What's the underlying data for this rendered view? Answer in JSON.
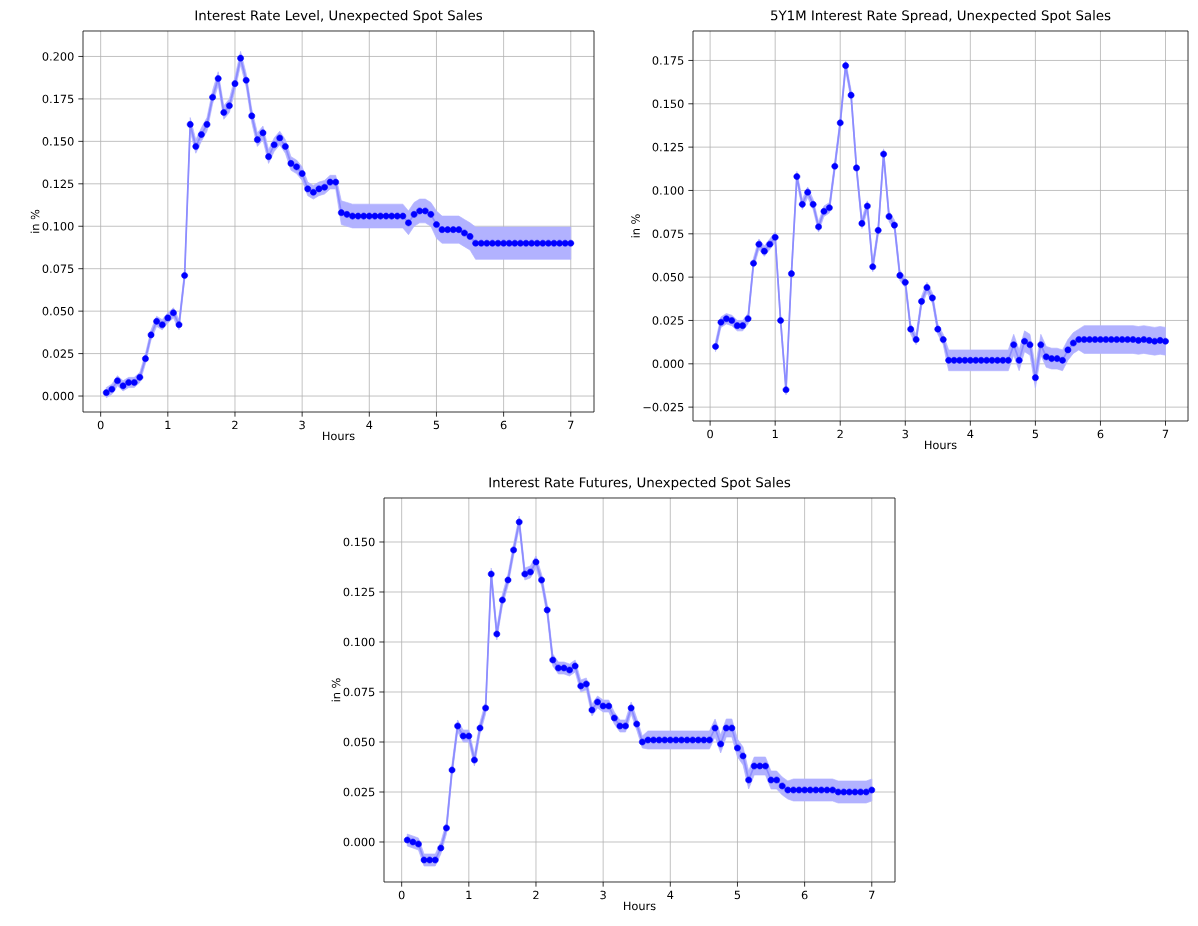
{
  "chart_data": [
    {
      "type": "line",
      "title": "Interest Rate Level, Unexpected Spot Sales",
      "xlabel": "Hours",
      "ylabel": "in %",
      "grid": true,
      "marker": "circle",
      "line_style": "solid",
      "xlim": [
        -0.263,
        7.346
      ],
      "ylim": [
        -0.0094,
        0.215
      ],
      "xticks": [
        0,
        1,
        2,
        3,
        4,
        5,
        6,
        7
      ],
      "yticks": [
        {
          "value": 0,
          "label": "0.000"
        },
        {
          "value": 0.025,
          "label": "0.025"
        },
        {
          "value": 0.05,
          "label": "0.050"
        },
        {
          "value": 0.075,
          "label": "0.075"
        },
        {
          "value": 0.1,
          "label": "0.100"
        },
        {
          "value": 0.125,
          "label": "0.125"
        },
        {
          "value": 0.15,
          "label": "0.150"
        },
        {
          "value": 0.175,
          "label": "0.175"
        },
        {
          "value": 0.2,
          "label": "0.200"
        }
      ],
      "x": [
        0.0833,
        0.1667,
        0.25,
        0.3333,
        0.4167,
        0.5,
        0.5833,
        0.6667,
        0.75,
        0.8333,
        0.9167,
        1,
        1.0833,
        1.1667,
        1.25,
        1.3333,
        1.4167,
        1.5,
        1.5833,
        1.6667,
        1.75,
        1.8333,
        1.9167,
        2,
        2.0833,
        2.1667,
        2.25,
        2.3333,
        2.4167,
        2.5,
        2.5833,
        2.6667,
        2.75,
        2.8333,
        2.9167,
        3,
        3.0833,
        3.1667,
        3.25,
        3.3333,
        3.4167,
        3.5,
        3.5833,
        3.6667,
        3.75,
        3.8333,
        3.9167,
        4,
        4.0833,
        4.1667,
        4.25,
        4.3333,
        4.4167,
        4.5,
        4.5833,
        4.6667,
        4.75,
        4.8333,
        4.9167,
        5,
        5.0833,
        5.1667,
        5.25,
        5.3333,
        5.4167,
        5.5,
        5.5833,
        5.6667,
        5.75,
        5.8333,
        5.9167,
        6,
        6.0833,
        6.1667,
        6.25,
        6.3333,
        6.4167,
        6.5,
        6.5833,
        6.6667,
        6.75,
        6.8333,
        6.9167,
        7
      ],
      "series": [
        {
          "color": "#0000ff",
          "values": [
            0.002,
            0.004,
            0.009,
            0.006,
            0.008,
            0.008,
            0.011,
            0.022,
            0.036,
            0.044,
            0.042,
            0.046,
            0.049,
            0.042,
            0.071,
            0.16,
            0.147,
            0.154,
            0.16,
            0.176,
            0.187,
            0.167,
            0.171,
            0.184,
            0.199,
            0.186,
            0.165,
            0.151,
            0.155,
            0.141,
            0.148,
            0.152,
            0.147,
            0.137,
            0.135,
            0.131,
            0.122,
            0.12,
            0.122,
            0.123,
            0.126,
            0.126,
            0.108,
            0.107,
            0.106,
            0.106,
            0.106,
            0.106,
            0.106,
            0.106,
            0.106,
            0.106,
            0.106,
            0.106,
            0.102,
            0.107,
            0.109,
            0.109,
            0.107,
            0.101,
            0.098,
            0.098,
            0.098,
            0.098,
            0.096,
            0.094,
            0.09,
            0.09,
            0.09,
            0.09,
            0.09,
            0.09,
            0.09,
            0.09,
            0.09,
            0.09,
            0.09,
            0.09,
            0.09,
            0.09,
            0.09,
            0.09,
            0.09,
            0.09
          ],
          "lower": [
            -0.001,
            0.001,
            0.006,
            0.003,
            0.005,
            0.005,
            0.008,
            0.019,
            0.033,
            0.041,
            0.039,
            0.043,
            0.046,
            0.039,
            0.068,
            0.156,
            0.143,
            0.15,
            0.156,
            0.172,
            0.183,
            0.163,
            0.167,
            0.18,
            0.195,
            0.182,
            0.161,
            0.147,
            0.151,
            0.137,
            0.144,
            0.148,
            0.143,
            0.133,
            0.131,
            0.127,
            0.118,
            0.116,
            0.118,
            0.119,
            0.122,
            0.122,
            0.101,
            0.1,
            0.099,
            0.099,
            0.099,
            0.099,
            0.099,
            0.099,
            0.099,
            0.099,
            0.099,
            0.099,
            0.095,
            0.1,
            0.102,
            0.102,
            0.1,
            0.093,
            0.09,
            0.09,
            0.09,
            0.09,
            0.088,
            0.086,
            0.0805,
            0.0805,
            0.0805,
            0.0805,
            0.0805,
            0.0805,
            0.0805,
            0.0805,
            0.0805,
            0.0805,
            0.0805,
            0.0805,
            0.0805,
            0.0805,
            0.0805,
            0.0805,
            0.0805,
            0.0805
          ],
          "upper": [
            0.005,
            0.007,
            0.012,
            0.009,
            0.011,
            0.011,
            0.014,
            0.025,
            0.039,
            0.047,
            0.045,
            0.049,
            0.052,
            0.045,
            0.074,
            0.164,
            0.151,
            0.158,
            0.164,
            0.18,
            0.191,
            0.171,
            0.175,
            0.188,
            0.203,
            0.19,
            0.169,
            0.155,
            0.159,
            0.145,
            0.152,
            0.156,
            0.151,
            0.141,
            0.139,
            0.135,
            0.126,
            0.124,
            0.126,
            0.127,
            0.13,
            0.13,
            0.115,
            0.114,
            0.113,
            0.113,
            0.113,
            0.113,
            0.113,
            0.113,
            0.113,
            0.113,
            0.113,
            0.113,
            0.109,
            0.114,
            0.116,
            0.116,
            0.114,
            0.109,
            0.106,
            0.106,
            0.106,
            0.106,
            0.104,
            0.102,
            0.0995,
            0.0995,
            0.0995,
            0.0995,
            0.0995,
            0.0995,
            0.0995,
            0.0995,
            0.0995,
            0.0995,
            0.0995,
            0.0995,
            0.0995,
            0.0995,
            0.0995,
            0.0995,
            0.0995,
            0.0995
          ]
        }
      ]
    },
    {
      "type": "line",
      "title": "5Y1M Interest Rate Spread, Unexpected Spot Sales",
      "xlabel": "Hours",
      "ylabel": "in %",
      "grid": true,
      "marker": "circle",
      "line_style": "solid",
      "xlim": [
        -0.263,
        7.346
      ],
      "ylim": [
        -0.033,
        0.192
      ],
      "xticks": [
        0,
        1,
        2,
        3,
        4,
        5,
        6,
        7
      ],
      "yticks": [
        {
          "value": -0.025,
          "label": "−0.025"
        },
        {
          "value": 0,
          "label": "0.000"
        },
        {
          "value": 0.025,
          "label": "0.025"
        },
        {
          "value": 0.05,
          "label": "0.050"
        },
        {
          "value": 0.075,
          "label": "0.075"
        },
        {
          "value": 0.1,
          "label": "0.100"
        },
        {
          "value": 0.125,
          "label": "0.125"
        },
        {
          "value": 0.15,
          "label": "0.150"
        },
        {
          "value": 0.175,
          "label": "0.175"
        }
      ],
      "x": [
        0.0833,
        0.1667,
        0.25,
        0.3333,
        0.4167,
        0.5,
        0.5833,
        0.6667,
        0.75,
        0.8333,
        0.9167,
        1,
        1.0833,
        1.1667,
        1.25,
        1.3333,
        1.4167,
        1.5,
        1.5833,
        1.6667,
        1.75,
        1.8333,
        1.9167,
        2,
        2.0833,
        2.1667,
        2.25,
        2.3333,
        2.4167,
        2.5,
        2.5833,
        2.6667,
        2.75,
        2.8333,
        2.9167,
        3,
        3.0833,
        3.1667,
        3.25,
        3.3333,
        3.4167,
        3.5,
        3.5833,
        3.6667,
        3.75,
        3.8333,
        3.9167,
        4,
        4.0833,
        4.1667,
        4.25,
        4.3333,
        4.4167,
        4.5,
        4.5833,
        4.6667,
        4.75,
        4.8333,
        4.9167,
        5,
        5.0833,
        5.1667,
        5.25,
        5.3333,
        5.4167,
        5.5,
        5.5833,
        5.6667,
        5.75,
        5.8333,
        5.9167,
        6,
        6.0833,
        6.1667,
        6.25,
        6.3333,
        6.4167,
        6.5,
        6.5833,
        6.6667,
        6.75,
        6.8333,
        6.9167,
        7
      ],
      "series": [
        {
          "color": "#0000ff",
          "values": [
            0.01,
            0.024,
            0.026,
            0.025,
            0.022,
            0.022,
            0.026,
            0.058,
            0.069,
            0.065,
            0.069,
            0.073,
            0.025,
            -0.015,
            0.052,
            0.108,
            0.092,
            0.099,
            0.092,
            0.079,
            0.088,
            0.09,
            0.114,
            0.139,
            0.172,
            0.155,
            0.113,
            0.081,
            0.091,
            0.056,
            0.077,
            0.121,
            0.085,
            0.08,
            0.051,
            0.047,
            0.02,
            0.014,
            0.036,
            0.044,
            0.038,
            0.02,
            0.014,
            0.002,
            0.002,
            0.002,
            0.002,
            0.002,
            0.002,
            0.002,
            0.002,
            0.002,
            0.002,
            0.002,
            0.002,
            0.011,
            0.002,
            0.013,
            0.011,
            -0.008,
            0.011,
            0.004,
            0.003,
            0.003,
            0.002,
            0.008,
            0.012,
            0.014,
            0.014,
            0.014,
            0.014,
            0.014,
            0.014,
            0.014,
            0.014,
            0.014,
            0.014,
            0.014,
            0.0135,
            0.014,
            0.0135,
            0.013,
            0.0135,
            0.013
          ],
          "lower": [
            0.007,
            0.021,
            0.023,
            0.022,
            0.019,
            0.019,
            0.023,
            0.055,
            0.066,
            0.062,
            0.066,
            0.07,
            0.022,
            -0.018,
            0.049,
            0.105,
            0.089,
            0.096,
            0.089,
            0.076,
            0.085,
            0.087,
            0.111,
            0.136,
            0.169,
            0.152,
            0.11,
            0.078,
            0.088,
            0.053,
            0.074,
            0.118,
            0.082,
            0.077,
            0.048,
            0.044,
            0.017,
            0.011,
            0.033,
            0.041,
            0.035,
            0.017,
            0.011,
            -0.004,
            -0.004,
            -0.004,
            -0.004,
            -0.004,
            -0.004,
            -0.004,
            -0.004,
            -0.004,
            -0.004,
            -0.004,
            -0.004,
            0.005,
            -0.004,
            0.007,
            0.005,
            -0.014,
            0.005,
            -0.002,
            -0.003,
            -0.003,
            -0.004,
            0.002,
            0.006,
            0.008,
            0.006,
            0.006,
            0.006,
            0.006,
            0.006,
            0.006,
            0.006,
            0.006,
            0.006,
            0.006,
            0.0055,
            0.006,
            0.0055,
            0.005,
            0.0055,
            0.005
          ],
          "upper": [
            0.013,
            0.027,
            0.029,
            0.028,
            0.025,
            0.025,
            0.029,
            0.061,
            0.072,
            0.068,
            0.072,
            0.076,
            0.028,
            -0.012,
            0.055,
            0.111,
            0.095,
            0.102,
            0.095,
            0.082,
            0.091,
            0.093,
            0.117,
            0.142,
            0.175,
            0.158,
            0.116,
            0.084,
            0.094,
            0.059,
            0.08,
            0.124,
            0.088,
            0.083,
            0.054,
            0.05,
            0.023,
            0.017,
            0.039,
            0.047,
            0.041,
            0.023,
            0.017,
            0.008,
            0.008,
            0.008,
            0.008,
            0.008,
            0.008,
            0.008,
            0.008,
            0.008,
            0.008,
            0.008,
            0.008,
            0.017,
            0.008,
            0.019,
            0.017,
            -0.002,
            0.017,
            0.01,
            0.009,
            0.009,
            0.008,
            0.014,
            0.018,
            0.02,
            0.022,
            0.022,
            0.022,
            0.022,
            0.022,
            0.022,
            0.022,
            0.022,
            0.022,
            0.022,
            0.0215,
            0.022,
            0.0215,
            0.021,
            0.0215,
            0.021
          ]
        }
      ]
    },
    {
      "type": "line",
      "title": "Interest Rate Futures, Unexpected Spot Sales",
      "xlabel": "Hours",
      "ylabel": "in %",
      "grid": true,
      "marker": "circle",
      "line_style": "solid",
      "xlim": [
        -0.263,
        7.346
      ],
      "ylim": [
        -0.02,
        0.172
      ],
      "xticks": [
        0,
        1,
        2,
        3,
        4,
        5,
        6,
        7
      ],
      "yticks": [
        {
          "value": 0,
          "label": "0.000"
        },
        {
          "value": 0.025,
          "label": "0.025"
        },
        {
          "value": 0.05,
          "label": "0.050"
        },
        {
          "value": 0.075,
          "label": "0.075"
        },
        {
          "value": 0.1,
          "label": "0.100"
        },
        {
          "value": 0.125,
          "label": "0.125"
        },
        {
          "value": 0.15,
          "label": "0.150"
        }
      ],
      "x": [
        0.0833,
        0.1667,
        0.25,
        0.3333,
        0.4167,
        0.5,
        0.5833,
        0.6667,
        0.75,
        0.8333,
        0.9167,
        1,
        1.0833,
        1.1667,
        1.25,
        1.3333,
        1.4167,
        1.5,
        1.5833,
        1.6667,
        1.75,
        1.8333,
        1.9167,
        2,
        2.0833,
        2.1667,
        2.25,
        2.3333,
        2.4167,
        2.5,
        2.5833,
        2.6667,
        2.75,
        2.8333,
        2.9167,
        3,
        3.0833,
        3.1667,
        3.25,
        3.3333,
        3.4167,
        3.5,
        3.5833,
        3.6667,
        3.75,
        3.8333,
        3.9167,
        4,
        4.0833,
        4.1667,
        4.25,
        4.3333,
        4.4167,
        4.5,
        4.5833,
        4.6667,
        4.75,
        4.8333,
        4.9167,
        5,
        5.0833,
        5.1667,
        5.25,
        5.3333,
        5.4167,
        5.5,
        5.5833,
        5.6667,
        5.75,
        5.8333,
        5.9167,
        6,
        6.0833,
        6.1667,
        6.25,
        6.3333,
        6.4167,
        6.5,
        6.5833,
        6.6667,
        6.75,
        6.8333,
        6.9167,
        7
      ],
      "series": [
        {
          "color": "#0000ff",
          "values": [
            0.001,
            0.0,
            -0.001,
            -0.009,
            -0.009,
            -0.009,
            -0.003,
            0.007,
            0.036,
            0.058,
            0.053,
            0.053,
            0.041,
            0.057,
            0.067,
            0.134,
            0.104,
            0.121,
            0.131,
            0.146,
            0.16,
            0.134,
            0.135,
            0.14,
            0.131,
            0.116,
            0.091,
            0.087,
            0.087,
            0.086,
            0.088,
            0.078,
            0.079,
            0.066,
            0.07,
            0.068,
            0.068,
            0.062,
            0.058,
            0.058,
            0.067,
            0.059,
            0.05,
            0.051,
            0.051,
            0.051,
            0.051,
            0.051,
            0.051,
            0.051,
            0.051,
            0.051,
            0.051,
            0.051,
            0.051,
            0.057,
            0.049,
            0.057,
            0.057,
            0.047,
            0.043,
            0.031,
            0.038,
            0.038,
            0.038,
            0.031,
            0.031,
            0.028,
            0.026,
            0.026,
            0.026,
            0.026,
            0.026,
            0.026,
            0.026,
            0.026,
            0.026,
            0.025,
            0.025,
            0.025,
            0.025,
            0.025,
            0.025,
            0.026
          ],
          "lower": [
            -0.002,
            -0.003,
            -0.004,
            -0.012,
            -0.012,
            -0.012,
            -0.006,
            0.004,
            0.033,
            0.055,
            0.05,
            0.05,
            0.038,
            0.054,
            0.064,
            0.131,
            0.101,
            0.118,
            0.128,
            0.143,
            0.157,
            0.131,
            0.132,
            0.137,
            0.128,
            0.113,
            0.088,
            0.084,
            0.084,
            0.083,
            0.085,
            0.075,
            0.076,
            0.063,
            0.067,
            0.065,
            0.065,
            0.059,
            0.055,
            0.055,
            0.064,
            0.056,
            0.047,
            0.0465,
            0.0465,
            0.0465,
            0.0465,
            0.0465,
            0.0465,
            0.0465,
            0.0465,
            0.0465,
            0.0465,
            0.0465,
            0.0465,
            0.0525,
            0.0445,
            0.0525,
            0.0525,
            0.0425,
            0.0385,
            0.0265,
            0.0335,
            0.0335,
            0.0335,
            0.0265,
            0.0265,
            0.0235,
            0.0215,
            0.0205,
            0.0205,
            0.0205,
            0.0205,
            0.0205,
            0.0205,
            0.0205,
            0.0205,
            0.0195,
            0.0195,
            0.0195,
            0.0195,
            0.0195,
            0.0195,
            0.0205
          ],
          "upper": [
            0.004,
            0.003,
            0.002,
            -0.006,
            -0.006,
            -0.006,
            0.0,
            0.01,
            0.039,
            0.061,
            0.056,
            0.056,
            0.044,
            0.06,
            0.07,
            0.137,
            0.107,
            0.124,
            0.134,
            0.149,
            0.163,
            0.137,
            0.138,
            0.143,
            0.134,
            0.119,
            0.094,
            0.09,
            0.09,
            0.089,
            0.091,
            0.081,
            0.082,
            0.069,
            0.073,
            0.071,
            0.071,
            0.065,
            0.061,
            0.061,
            0.07,
            0.062,
            0.053,
            0.0555,
            0.0555,
            0.0555,
            0.0555,
            0.0555,
            0.0555,
            0.0555,
            0.0555,
            0.0555,
            0.0555,
            0.0555,
            0.0555,
            0.0615,
            0.0535,
            0.0615,
            0.0615,
            0.0515,
            0.0475,
            0.0355,
            0.0425,
            0.0425,
            0.0425,
            0.0355,
            0.0355,
            0.0325,
            0.0305,
            0.0315,
            0.0315,
            0.0315,
            0.0315,
            0.0315,
            0.0315,
            0.0315,
            0.0315,
            0.0305,
            0.0305,
            0.0305,
            0.0305,
            0.0305,
            0.0305,
            0.0315
          ]
        }
      ]
    }
  ]
}
